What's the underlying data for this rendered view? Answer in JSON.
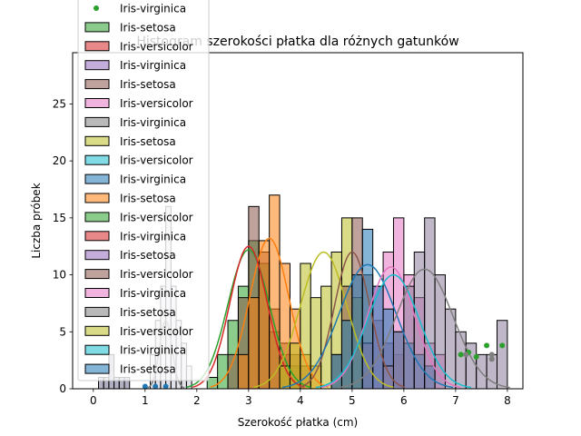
{
  "chart_data": {
    "type": "bar",
    "title": "Histogram szerokości płatka dla różnych gatunków",
    "xlabel": "Szerokość płatka (cm)",
    "ylabel": "Liczba próbek",
    "xlim": [
      -0.4,
      8.3
    ],
    "ylim": [
      0,
      29.5
    ],
    "xticks": [
      0,
      1,
      2,
      3,
      4,
      5,
      6,
      7,
      8
    ],
    "yticks": [
      0,
      5,
      10,
      15,
      20,
      25
    ],
    "grid": false,
    "legend_position": "top-left (overflowing above plot)",
    "legend_entries": [
      {
        "label": "Iris-virginica",
        "marker": "dot",
        "color": "#2ca02c"
      },
      {
        "label": "Iris-setosa",
        "marker": "patch",
        "color": "#2ca02c"
      },
      {
        "label": "Iris-versicolor",
        "marker": "patch",
        "color": "#d62728"
      },
      {
        "label": "Iris-virginica",
        "marker": "patch",
        "color": "#9467bd"
      },
      {
        "label": "Iris-setosa",
        "marker": "patch",
        "color": "#8c564b"
      },
      {
        "label": "Iris-versicolor",
        "marker": "patch",
        "color": "#e377c2"
      },
      {
        "label": "Iris-virginica",
        "marker": "patch",
        "color": "#7f7f7f"
      },
      {
        "label": "Iris-setosa",
        "marker": "patch",
        "color": "#bcbd22"
      },
      {
        "label": "Iris-versicolor",
        "marker": "patch",
        "color": "#17becf"
      },
      {
        "label": "Iris-virginica",
        "marker": "patch",
        "color": "#1f77b4"
      },
      {
        "label": "Iris-setosa",
        "marker": "patch",
        "color": "#ff7f0e"
      },
      {
        "label": "Iris-versicolor",
        "marker": "patch",
        "color": "#2ca02c"
      },
      {
        "label": "Iris-virginica",
        "marker": "patch",
        "color": "#d62728"
      },
      {
        "label": "Iris-setosa",
        "marker": "patch",
        "color": "#9467bd"
      },
      {
        "label": "Iris-versicolor",
        "marker": "patch",
        "color": "#8c564b"
      },
      {
        "label": "Iris-virginica",
        "marker": "patch",
        "color": "#e377c2"
      },
      {
        "label": "Iris-setosa",
        "marker": "patch",
        "color": "#7f7f7f"
      },
      {
        "label": "Iris-versicolor",
        "marker": "patch",
        "color": "#bcbd22"
      },
      {
        "label": "Iris-virginica",
        "marker": "patch",
        "color": "#17becf"
      },
      {
        "label": "Iris-setosa",
        "marker": "patch",
        "color": "#1f77b4"
      }
    ],
    "series": [
      {
        "color": "#2ca02c",
        "binStart": 2.2,
        "binWidth": 0.2,
        "counts": [
          1,
          3,
          6,
          9,
          13,
          11,
          5,
          3,
          2
        ]
      },
      {
        "color": "#8c564b",
        "binStart": 2.6,
        "binWidth": 0.2,
        "counts": [
          3,
          8,
          16,
          12,
          7,
          4,
          3,
          2
        ]
      },
      {
        "color": "#ff7f0e",
        "binStart": 2.8,
        "binWidth": 0.2,
        "counts": [
          3,
          8,
          13,
          17,
          11,
          7,
          3,
          2
        ]
      },
      {
        "color": "#bcbd22",
        "binStart": 3.6,
        "binWidth": 0.2,
        "counts": [
          2,
          4,
          11,
          8,
          9,
          12,
          15,
          8,
          4
        ]
      },
      {
        "color": "#8c564b",
        "binStart": 4.6,
        "binWidth": 0.2,
        "counts": [
          3,
          9,
          15,
          10,
          6,
          4,
          3
        ]
      },
      {
        "color": "#e377c2",
        "binStart": 5.2,
        "binWidth": 0.2,
        "counts": [
          4,
          9,
          12,
          15,
          10,
          8,
          4,
          3
        ]
      },
      {
        "color": "#1f77b4",
        "binStart": 4.6,
        "binWidth": 0.2,
        "counts": [
          3,
          6,
          10,
          14,
          9,
          7,
          5,
          4,
          3,
          2
        ]
      },
      {
        "color": "#8c7b9a",
        "binStart": 5.6,
        "binWidth": 0.2,
        "counts": [
          2,
          5,
          9,
          12,
          15,
          10,
          7,
          5,
          4,
          3,
          3,
          6
        ]
      },
      {
        "color": "#6f6f8f",
        "binStart": 0.1,
        "binWidth": 0.1,
        "counts": [
          1,
          1,
          3,
          1,
          1,
          1
        ]
      },
      {
        "color": "#c8c8d8",
        "binStart": 1.1,
        "binWidth": 0.1,
        "counts": [
          3,
          6,
          9,
          16,
          9,
          6,
          4,
          2
        ]
      }
    ],
    "kde": [
      {
        "color": "#2ca02c",
        "mean": 3.0,
        "sd": 0.4,
        "peak": 12.2
      },
      {
        "color": "#ff7f0e",
        "mean": 3.4,
        "sd": 0.38,
        "peak": 13.2
      },
      {
        "color": "#d62728",
        "mean": 3.0,
        "sd": 0.36,
        "peak": 12.5
      },
      {
        "color": "#bcbd22",
        "mean": 4.45,
        "sd": 0.45,
        "peak": 12.0
      },
      {
        "color": "#8c564b",
        "mean": 5.0,
        "sd": 0.34,
        "peak": 12.0
      },
      {
        "color": "#1f77b4",
        "mean": 5.3,
        "sd": 0.55,
        "peak": 10.9
      },
      {
        "color": "#e377c2",
        "mean": 5.75,
        "sd": 0.45,
        "peak": 10.7
      },
      {
        "color": "#17becf",
        "mean": 5.8,
        "sd": 0.5,
        "peak": 10.0
      },
      {
        "color": "#7f7f7f",
        "mean": 6.4,
        "sd": 0.55,
        "peak": 10.5
      },
      {
        "color": "#7f7f7f",
        "mean": 1.4,
        "sd": 0.12,
        "peak": 6.0
      }
    ],
    "scatter": [
      {
        "color": "#2ca02c",
        "x": 7.1,
        "y": 3.0
      },
      {
        "color": "#2ca02c",
        "x": 7.25,
        "y": 3.2
      },
      {
        "color": "#2ca02c",
        "x": 7.4,
        "y": 2.8
      },
      {
        "color": "#2ca02c",
        "x": 7.6,
        "y": 3.8
      },
      {
        "color": "#2ca02c",
        "x": 7.9,
        "y": 3.8
      },
      {
        "color": "#7f7f7f",
        "x": 7.2,
        "y": 3.0
      },
      {
        "color": "#7f7f7f",
        "x": 7.7,
        "y": 3.0
      },
      {
        "color": "#7f7f7f",
        "x": 7.7,
        "y": 2.6
      },
      {
        "color": "#1f77b4",
        "x": 1.0,
        "y": 0.2
      },
      {
        "color": "#1f77b4",
        "x": 1.2,
        "y": 0.2
      },
      {
        "color": "#1f77b4",
        "x": 1.4,
        "y": 0.2
      }
    ]
  }
}
